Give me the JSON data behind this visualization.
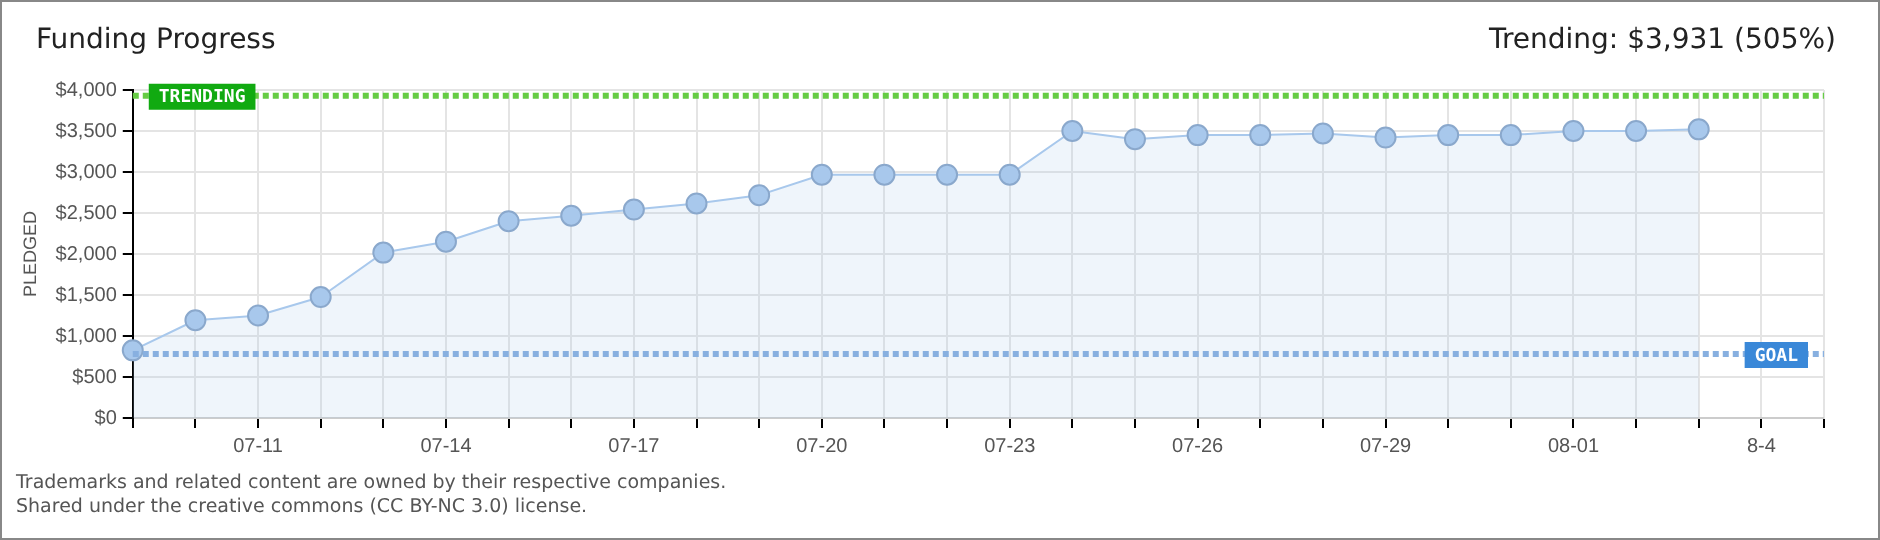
{
  "chart_data": {
    "type": "area",
    "title": "Funding Progress",
    "subtitle": "Trending: $3,931 (505%)",
    "ylabel": "PLEDGED",
    "categories": [
      null,
      null,
      "07-11",
      null,
      null,
      "07-14",
      null,
      null,
      "07-17",
      null,
      null,
      "07-20",
      null,
      null,
      "07-23",
      null,
      null,
      "07-26",
      null,
      null,
      "07-29",
      null,
      null,
      "08-01",
      null,
      null,
      "8-4",
      null
    ],
    "series": [
      {
        "color": "#a8c8ec",
        "values": [
          825,
          1192,
          1250,
          1475,
          2017,
          2150,
          2400,
          2467,
          2542,
          2617,
          2717,
          2967,
          2967,
          2967,
          2967,
          3500,
          3400,
          3450,
          3450,
          3470,
          3420,
          3450,
          3450,
          3500,
          3500,
          3520,
          null,
          null
        ]
      }
    ],
    "ylim": [
      0,
      4000
    ],
    "yticks": [
      {
        "value": 0,
        "label": "$0"
      },
      {
        "value": 500,
        "label": "$500"
      },
      {
        "value": 1000,
        "label": "$1,000"
      },
      {
        "value": 1500,
        "label": "$1,500"
      },
      {
        "value": 2000,
        "label": "$2,000"
      },
      {
        "value": 2500,
        "label": "$2,500"
      },
      {
        "value": 3000,
        "label": "$3,000"
      },
      {
        "value": 3500,
        "label": "$3,500"
      },
      {
        "value": 4000,
        "label": "$4,000"
      }
    ],
    "ref_lines": [
      {
        "axis": "y",
        "value": 3931,
        "label": "TRENDING",
        "color": "#66cc44",
        "line_style": "dotted"
      },
      {
        "axis": "y",
        "value": 780,
        "label": "GOAL",
        "color": "#88b0e0",
        "line_style": "dotted"
      }
    ],
    "grid": true,
    "legend": false,
    "marker": "circle",
    "annotations": [
      "Trademarks and related content are owned by their respective companies.",
      "Shared under the creative commons (CC BY-NC 3.0) license."
    ]
  }
}
